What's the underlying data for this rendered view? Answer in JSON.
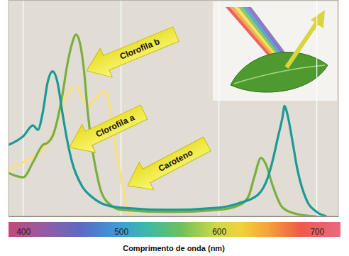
{
  "chart_data": {
    "type": "line",
    "xlabel": "Comprimento de onda (nm)",
    "xlim": [
      385,
      722
    ],
    "xticks": [
      400,
      500,
      600,
      700
    ],
    "ylim": [
      0,
      100
    ],
    "tick_labels": "x",
    "grid": true,
    "series": [
      {
        "name": "Clorofila b",
        "color": "#7aae3e",
        "x": [
          385,
          400,
          410,
          420,
          425,
          430,
          440,
          445,
          450,
          454,
          458,
          462,
          466,
          470,
          475,
          480,
          490,
          500,
          550,
          600,
          620,
          630,
          636,
          643,
          648,
          655,
          665,
          680,
          700
        ],
        "values": [
          20,
          18,
          25,
          33,
          34,
          37,
          56,
          70,
          80,
          84,
          80,
          68,
          48,
          33,
          20,
          11,
          5,
          3,
          2,
          3,
          5,
          9,
          18,
          27,
          24,
          14,
          4,
          1,
          0
        ]
      },
      {
        "name": "Clorofila a",
        "color": "#1a9996",
        "x": [
          385,
          400,
          410,
          415,
          420,
          425,
          430,
          435,
          440,
          445,
          450,
          460,
          470,
          480,
          500,
          550,
          600,
          620,
          640,
          650,
          655,
          660,
          665,
          667,
          670,
          675,
          680,
          690,
          700,
          710
        ],
        "values": [
          33,
          37,
          42,
          40,
          48,
          62,
          67,
          62,
          48,
          35,
          25,
          14,
          9,
          6,
          4,
          3,
          4,
          6,
          10,
          18,
          26,
          36,
          46,
          51,
          47,
          35,
          22,
          7,
          2,
          0
        ]
      },
      {
        "name": "Caroteno",
        "color": "#f8e07c",
        "x": [
          385,
          400,
          420,
          430,
          440,
          447,
          454,
          460,
          467,
          475,
          484,
          490,
          495,
          500,
          505,
          510
        ],
        "values": [
          21,
          25,
          31,
          38,
          51,
          58,
          60,
          55,
          51,
          55,
          58,
          47,
          31,
          18,
          6,
          0
        ]
      }
    ]
  }
}
